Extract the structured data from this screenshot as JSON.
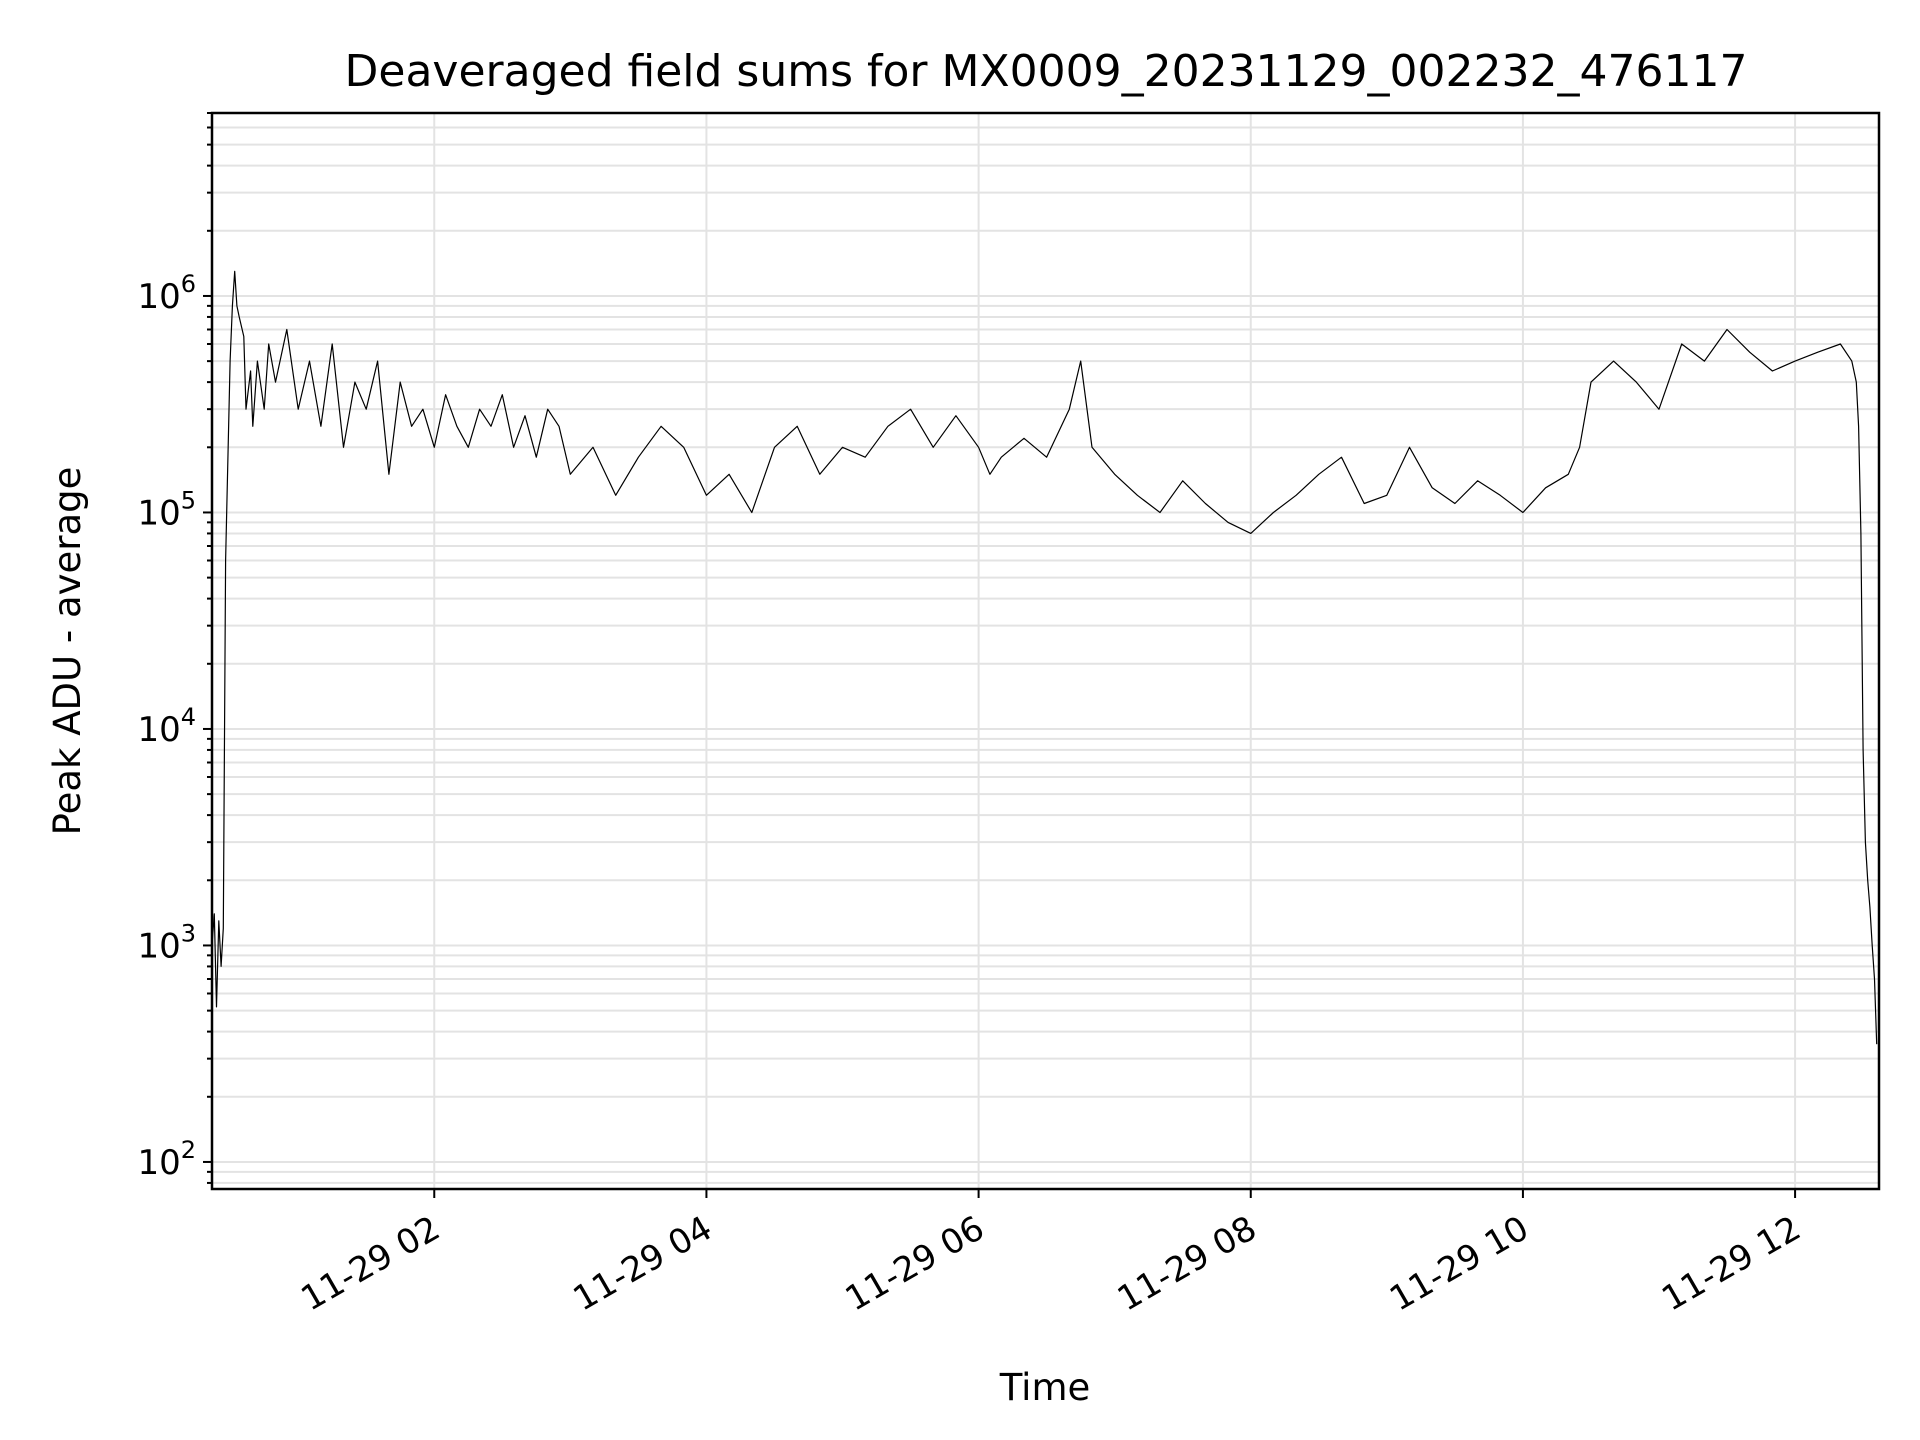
{
  "chart_data": {
    "type": "line",
    "title": "Deaveraged field sums for MX0009_20231129_002232_476117",
    "xlabel": "Time",
    "ylabel": "Peak ADU - average",
    "yscale": "log",
    "ylim": [
      75,
      7000000
    ],
    "xlim": [
      "11-29 00:22",
      "11-29 12:37"
    ],
    "xticks": [
      "11-29 02",
      "11-29 04",
      "11-29 06",
      "11-29 08",
      "11-29 10",
      "11-29 12"
    ],
    "yticks": [
      {
        "base": "10",
        "exp": "2"
      },
      {
        "base": "10",
        "exp": "3"
      },
      {
        "base": "10",
        "exp": "4"
      },
      {
        "base": "10",
        "exp": "5"
      },
      {
        "base": "10",
        "exp": "6"
      }
    ],
    "grid": true,
    "series_color": "#000000",
    "series": [
      {
        "x": [
          "11-29 00:22",
          "11-29 00:23",
          "11-29 00:24",
          "11-29 00:25",
          "11-29 00:26",
          "11-29 00:27",
          "11-29 00:28",
          "11-29 00:30",
          "11-29 00:31",
          "11-29 00:32",
          "11-29 00:33",
          "11-29 00:34",
          "11-29 00:36",
          "11-29 00:37",
          "11-29 00:39",
          "11-29 00:40",
          "11-29 00:42",
          "11-29 00:45",
          "11-29 00:47",
          "11-29 00:50",
          "11-29 00:55",
          "11-29 01:00",
          "11-29 01:05",
          "11-29 01:10",
          "11-29 01:15",
          "11-29 01:20",
          "11-29 01:25",
          "11-29 01:30",
          "11-29 01:35",
          "11-29 01:40",
          "11-29 01:45",
          "11-29 01:50",
          "11-29 01:55",
          "11-29 02:00",
          "11-29 02:05",
          "11-29 02:10",
          "11-29 02:15",
          "11-29 02:20",
          "11-29 02:25",
          "11-29 02:30",
          "11-29 02:35",
          "11-29 02:40",
          "11-29 02:45",
          "11-29 02:50",
          "11-29 02:55",
          "11-29 03:00",
          "11-29 03:10",
          "11-29 03:20",
          "11-29 03:30",
          "11-29 03:40",
          "11-29 03:50",
          "11-29 04:00",
          "11-29 04:10",
          "11-29 04:20",
          "11-29 04:30",
          "11-29 04:40",
          "11-29 04:50",
          "11-29 05:00",
          "11-29 05:10",
          "11-29 05:20",
          "11-29 05:30",
          "11-29 05:40",
          "11-29 05:50",
          "11-29 06:00",
          "11-29 06:05",
          "11-29 06:10",
          "11-29 06:20",
          "11-29 06:30",
          "11-29 06:40",
          "11-29 06:45",
          "11-29 06:50",
          "11-29 07:00",
          "11-29 07:10",
          "11-29 07:20",
          "11-29 07:30",
          "11-29 07:40",
          "11-29 07:50",
          "11-29 08:00",
          "11-29 08:10",
          "11-29 08:20",
          "11-29 08:30",
          "11-29 08:40",
          "11-29 08:50",
          "11-29 09:00",
          "11-29 09:10",
          "11-29 09:20",
          "11-29 09:30",
          "11-29 09:40",
          "11-29 09:50",
          "11-29 10:00",
          "11-29 10:10",
          "11-29 10:20",
          "11-29 10:25",
          "11-29 10:30",
          "11-29 10:40",
          "11-29 10:50",
          "11-29 11:00",
          "11-29 11:10",
          "11-29 11:20",
          "11-29 11:30",
          "11-29 11:40",
          "11-29 11:50",
          "11-29 12:00",
          "11-29 12:10",
          "11-29 12:20",
          "11-29 12:25",
          "11-29 12:27",
          "11-29 12:28",
          "11-29 12:29",
          "11-29 12:30",
          "11-29 12:31",
          "11-29 12:32",
          "11-29 12:33",
          "11-29 12:34",
          "11-29 12:35",
          "11-29 12:36"
        ],
        "y": [
          1000,
          1400,
          520,
          1300,
          800,
          1200,
          60000,
          500000,
          900000,
          1300000,
          900000,
          800000,
          650000,
          300000,
          450000,
          250000,
          500000,
          300000,
          600000,
          400000,
          700000,
          300000,
          500000,
          250000,
          600000,
          200000,
          400000,
          300000,
          500000,
          150000,
          400000,
          250000,
          300000,
          200000,
          350000,
          250000,
          200000,
          300000,
          250000,
          350000,
          200000,
          280000,
          180000,
          300000,
          250000,
          150000,
          200000,
          120000,
          180000,
          250000,
          200000,
          120000,
          150000,
          100000,
          200000,
          250000,
          150000,
          200000,
          180000,
          250000,
          300000,
          200000,
          280000,
          200000,
          150000,
          180000,
          220000,
          180000,
          300000,
          500000,
          200000,
          150000,
          120000,
          100000,
          140000,
          110000,
          90000,
          80000,
          100000,
          120000,
          150000,
          180000,
          110000,
          120000,
          200000,
          130000,
          110000,
          140000,
          120000,
          100000,
          130000,
          150000,
          200000,
          400000,
          500000,
          400000,
          300000,
          600000,
          500000,
          700000,
          550000,
          450000,
          500000,
          550000,
          600000,
          500000,
          400000,
          250000,
          80000,
          8000,
          3000,
          2000,
          1500,
          1000,
          700,
          350
        ]
      }
    ]
  }
}
